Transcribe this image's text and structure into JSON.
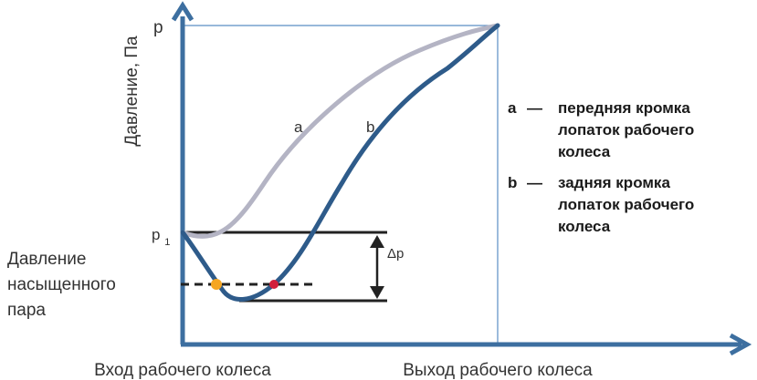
{
  "axes": {
    "y_title": "Давление, Па",
    "y_top_label": "p",
    "y_p1_label_main": "p",
    "y_p1_label_sub": "1",
    "x_left_label": "Вход рабочего колеса",
    "x_right_label": "Выход рабочего колеса"
  },
  "saturation_label": [
    "Давление",
    "насыщенного",
    "пара"
  ],
  "curves": {
    "a": {
      "label": "a",
      "color": "#b4b4c4"
    },
    "b": {
      "label": "b",
      "color": "#2e5b8a"
    }
  },
  "delta_p_label": "Δp",
  "markers": {
    "orange": "#f5a623",
    "red": "#d21f3c"
  },
  "colors": {
    "axis": "#3d6fa0",
    "frame": "#5b8ec4",
    "level_line": "#222222"
  },
  "legend": [
    {
      "key": "a",
      "dash": "—",
      "lines": [
        "передняя кромка",
        "лопаток рабочего",
        "колеса"
      ]
    },
    {
      "key": "b",
      "dash": "—",
      "lines": [
        "задняя кромка",
        "лопаток рабочего",
        "колеса"
      ]
    }
  ]
}
